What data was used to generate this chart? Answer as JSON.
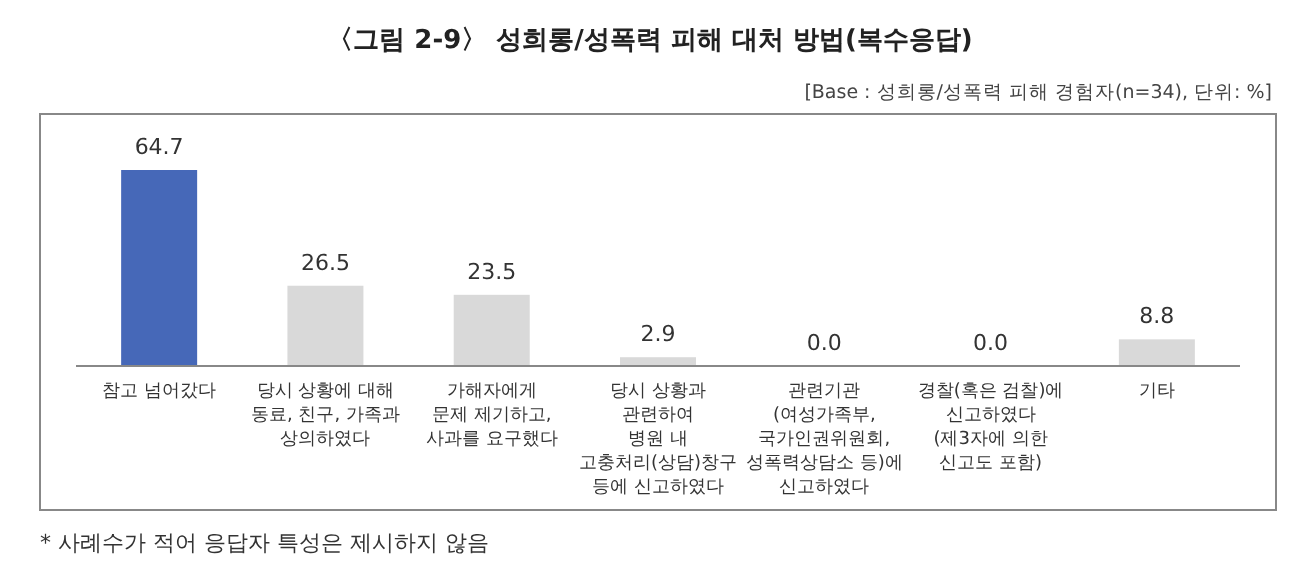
{
  "chart_data": {
    "type": "bar",
    "title": "〈그림 2-9〉 성희롱/성폭력 피해 대처 방법(복수응답)",
    "subtitle": "[Base : 성희롱/성폭력 피해 경험자(n=34), 단위: %]",
    "categories": [
      "참고 넘어갔다",
      "당시 상황에 대해\n동료, 친구, 가족과\n상의하였다",
      "가해자에게\n문제 제기하고,\n사과를 요구했다",
      "당시 상황과\n관련하여\n병원 내\n고충처리(상담)창구\n등에 신고하였다",
      "관련기관\n(여성가족부,\n국가인권위원회,\n성폭력상담소 등)에\n신고하였다",
      "경찰(혹은 검찰)에\n신고하였다\n(제3자에 의한\n신고도 포함)",
      "기타"
    ],
    "values": [
      64.7,
      26.5,
      23.5,
      2.9,
      0.0,
      0.0,
      8.8
    ],
    "value_labels": [
      "64.7",
      "26.5",
      "23.5",
      "2.9",
      "0.0",
      "0.0",
      "8.8"
    ],
    "colors": [
      "#4668b8",
      "#d9d9d9",
      "#d9d9d9",
      "#d9d9d9",
      "#d9d9d9",
      "#d9d9d9",
      "#d9d9d9"
    ],
    "annotations": [
      "* 사례수가 적어 응답자 특성은 제시하지 않음"
    ]
  }
}
